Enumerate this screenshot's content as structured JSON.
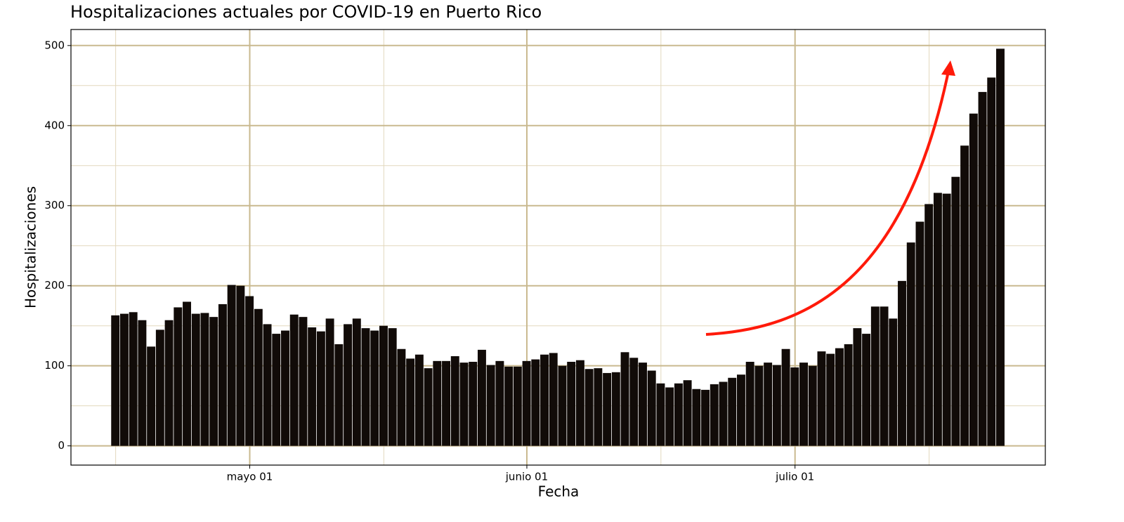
{
  "chart_data": {
    "type": "bar",
    "title": "Hospitalizaciones actuales por COVID-19 en Puerto Rico",
    "x_label": "Fecha",
    "y_label": "Hospitalizaciones",
    "color": "#110b08",
    "grid": true,
    "x_start": "04-16",
    "values": [
      163,
      165,
      167,
      157,
      124,
      145,
      157,
      173,
      180,
      165,
      166,
      161,
      177,
      201,
      200,
      187,
      171,
      152,
      140,
      144,
      164,
      161,
      148,
      143,
      159,
      127,
      152,
      159,
      147,
      144,
      150,
      147,
      121,
      109,
      114,
      97,
      106,
      106,
      112,
      104,
      105,
      120,
      101,
      106,
      99,
      99,
      106,
      108,
      114,
      116,
      100,
      105,
      107,
      96,
      97,
      91,
      92,
      117,
      110,
      104,
      94,
      78,
      73,
      78,
      82,
      71,
      70,
      77,
      80,
      85,
      89,
      105,
      100,
      104,
      101,
      121,
      98,
      104,
      100,
      118,
      115,
      122,
      127,
      147,
      140,
      174,
      174,
      159,
      206,
      254,
      280,
      302,
      316,
      315,
      336,
      375,
      415,
      442,
      460,
      496
    ],
    "xlim": [
      "04-11",
      "07-29"
    ],
    "xticks": [
      {
        "value": "05-01",
        "label": "mayo 01"
      },
      {
        "value": "06-01",
        "label": "junio 01"
      },
      {
        "value": "07-01",
        "label": "julio 01"
      }
    ],
    "xminorticks": [
      "04-16",
      "05-16",
      "06-16",
      "07-16"
    ],
    "ylim": [
      -24,
      520
    ],
    "yticks": [
      0,
      100,
      200,
      300,
      400,
      500
    ],
    "yminorticks": [
      50,
      150,
      250,
      350,
      450
    ]
  }
}
